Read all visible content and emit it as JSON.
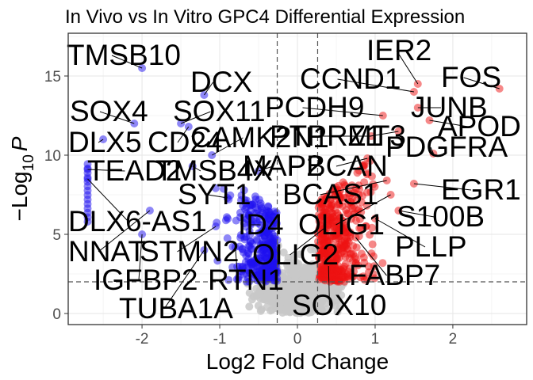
{
  "chart_data": {
    "type": "scatter",
    "title": "In Vivo vs In Vitro GPC4 Differential Expression",
    "xlabel": "Log2 Fold Change",
    "ylabel": {
      "main": "−Log",
      "sub": "10",
      "italic": "P"
    },
    "xlim": [
      -2.95,
      2.95
    ],
    "ylim": [
      -0.7,
      17.7
    ],
    "xticks": [
      -2,
      -1,
      0,
      1,
      2
    ],
    "yticks": [
      0,
      5,
      10,
      15
    ],
    "grid": true,
    "fc_cutoffs": [
      -0.26,
      0.26
    ],
    "p_cutoff": 2,
    "colors": {
      "down": "#1e10f0",
      "up": "#ee1111",
      "ns": "#c8c8c8"
    },
    "labels": [
      {
        "text": "TMSB10",
        "x": -2.0,
        "y": 15.5
      },
      {
        "text": "DCX",
        "x": -1.2,
        "y": 13.8
      },
      {
        "text": "SOX4",
        "x": -2.1,
        "y": 12.0
      },
      {
        "text": "SOX11",
        "x": -1.5,
        "y": 12.0
      },
      {
        "text": "DLX5",
        "x": -2.5,
        "y": 11.0
      },
      {
        "text": "CD24",
        "x": -1.4,
        "y": 11.8
      },
      {
        "text": "CAMK2N1",
        "x": -1.1,
        "y": 10.0
      },
      {
        "text": "TEAD2",
        "x": -2.7,
        "y": 9.1
      },
      {
        "text": "TMSB4X",
        "x": -1.35,
        "y": 9.3
      },
      {
        "text": "MAP2",
        "x": -0.5,
        "y": 9.0
      },
      {
        "text": "SYT1",
        "x": -0.9,
        "y": 7.3
      },
      {
        "text": "DLX6-AS1",
        "x": -2.7,
        "y": 8.5
      },
      {
        "text": "NNAT",
        "x": -1.9,
        "y": 6.5
      },
      {
        "text": "STMN2",
        "x": -1.05,
        "y": 5.5
      },
      {
        "text": "ID4",
        "x": -0.6,
        "y": 5.6
      },
      {
        "text": "IGFBP2",
        "x": -2.0,
        "y": 5.0
      },
      {
        "text": "RTN1",
        "x": -0.8,
        "y": 4.2
      },
      {
        "text": "TUBA1A",
        "x": -1.2,
        "y": 4.0
      },
      {
        "text": "OLIG2",
        "x": 0.35,
        "y": 5.4
      },
      {
        "text": "IER2",
        "x": 1.55,
        "y": 14.5
      },
      {
        "text": "CCND1",
        "x": 1.5,
        "y": 14.0
      },
      {
        "text": "FOS",
        "x": 2.6,
        "y": 14.2
      },
      {
        "text": "PCDH9",
        "x": 1.1,
        "y": 12.5
      },
      {
        "text": "JUNB",
        "x": 1.55,
        "y": 13.0
      },
      {
        "text": "PTPRZ1",
        "x": 0.95,
        "y": 11.2
      },
      {
        "text": "MT3",
        "x": 1.3,
        "y": 11.5
      },
      {
        "text": "APOD",
        "x": 1.7,
        "y": 12.2
      },
      {
        "text": "PDGFRA",
        "x": 1.75,
        "y": 10.1
      },
      {
        "text": "BCAN",
        "x": 0.9,
        "y": 9.8
      },
      {
        "text": "BCAS1",
        "x": 1.15,
        "y": 8.4
      },
      {
        "text": "EGR1",
        "x": 1.5,
        "y": 8.2
      },
      {
        "text": "OLIG1",
        "x": 1.2,
        "y": 7.5
      },
      {
        "text": "S100B",
        "x": 1.3,
        "y": 6.5
      },
      {
        "text": "PLLP",
        "x": 1.0,
        "y": 6.0
      },
      {
        "text": "FABP7",
        "x": 0.75,
        "y": 4.8
      },
      {
        "text": "SOX10",
        "x": 0.4,
        "y": 3.0
      }
    ]
  }
}
